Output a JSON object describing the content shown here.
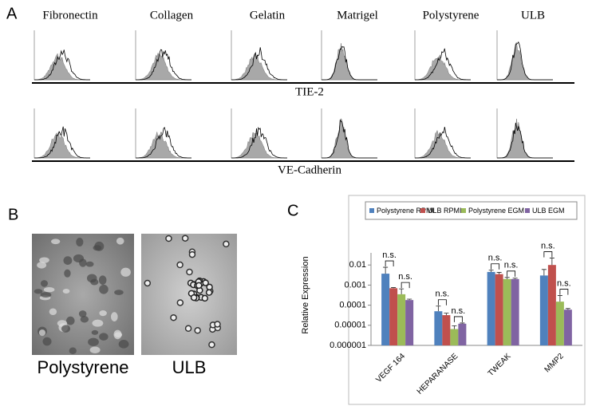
{
  "panel_a": {
    "label": "A",
    "columns": [
      "Fibronectin",
      "Collagen",
      "Gelatin",
      "Matrigel",
      "Polystyrene",
      "ULB"
    ],
    "rows": [
      "TIE-2",
      "VE-Cadherin"
    ]
  },
  "panel_b": {
    "label": "B",
    "images": [
      "Polystyrene",
      "ULB"
    ]
  },
  "chart_data": {
    "type": "bar",
    "panel_label": "C",
    "ylabel": "Relative Expression",
    "categories": [
      "VEGF 164",
      "HEPARANASE",
      "TWEAK",
      "MMP2"
    ],
    "series": [
      {
        "name": "Polystyrene RPMI",
        "color": "#4f81bd",
        "values": [
          0.0037,
          5e-05,
          0.0045,
          0.003
        ],
        "errors": [
          0.004,
          4e-05,
          0.001,
          0.003
        ]
      },
      {
        "name": "ULB RPMI",
        "color": "#c0504d",
        "values": [
          0.0007,
          3.2e-05,
          0.0035,
          0.01
        ],
        "errors": [
          5e-05,
          8e-06,
          0.0008,
          0.012
        ]
      },
      {
        "name": "Polystyrene EGM",
        "color": "#9bbb59",
        "values": [
          0.00035,
          6.5e-06,
          0.002,
          0.00015
        ],
        "errors": [
          0.0003,
          3e-06,
          0.0004,
          0.00015
        ]
      },
      {
        "name": "ULB EGM",
        "color": "#8064a2",
        "values": [
          0.00018,
          1.2e-05,
          0.002,
          6e-05
        ],
        "errors": [
          2e-05,
          1e-06,
          0.0002,
          8e-06
        ]
      }
    ],
    "ylim": [
      1e-06,
      0.1
    ],
    "yticks": [
      1e-06,
      1e-05,
      0.0001,
      0.001,
      0.01
    ],
    "log_scale": true,
    "annotations": [
      "n.s.",
      "n.s.",
      "n.s.",
      "n.s.",
      "n.s.",
      "n.s.",
      "n.s.",
      "n.s."
    ]
  }
}
